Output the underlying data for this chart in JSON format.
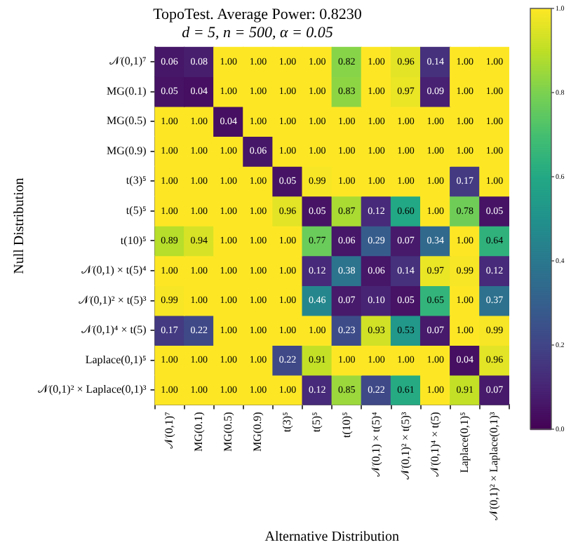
{
  "chart_data": {
    "type": "heatmap",
    "title": "TopoTest. Average Power: 0.8230",
    "subtitle": "d = 5, n = 500, α = 0.05",
    "xlabel": "Alternative Distribution",
    "ylabel": "Null Distribution",
    "categories": [
      "𝒩(0,1)⁷",
      "MG(0.1)",
      "MG(0.5)",
      "MG(0.9)",
      "t(3)⁵",
      "t(5)⁵",
      "t(10)⁵",
      "𝒩(0,1) × t(5)⁴",
      "𝒩(0,1)² × t(5)³",
      "𝒩(0,1)⁴ × t(5)",
      "Laplace(0,1)⁵",
      "𝒩(0,1)² × Laplace(0,1)³"
    ],
    "y_categories": [
      "𝒩(0,1)⁷",
      "MG(0.1)",
      "MG(0.5)",
      "MG(0.9)",
      "t(3)⁵",
      "t(5)⁵",
      "t(10)⁵",
      "𝒩(0,1) × t(5)⁴",
      "𝒩(0,1)² × t(5)³",
      "𝒩(0,1)⁴ × t(5)",
      "Laplace(0,1)⁵",
      "𝒩(0,1)² × Laplace(0,1)³"
    ],
    "cells": [
      [
        0.06,
        0.08,
        1,
        1,
        1,
        1,
        0.82,
        1,
        0.96,
        0.14,
        1,
        1
      ],
      [
        0.05,
        0.04,
        1,
        1,
        1,
        1,
        0.83,
        1,
        0.97,
        0.09,
        1,
        1
      ],
      [
        1,
        1,
        0.04,
        1,
        1,
        1,
        1,
        1,
        1,
        1,
        1,
        1
      ],
      [
        1,
        1,
        1,
        0.06,
        1,
        1,
        1,
        1,
        1,
        1,
        1,
        1
      ],
      [
        1,
        1,
        1,
        1,
        0.05,
        0.99,
        1,
        1,
        1,
        1,
        0.17,
        1
      ],
      [
        1,
        1,
        1,
        1,
        0.96,
        0.05,
        0.87,
        0.12,
        0.6,
        1,
        0.78,
        0.05
      ],
      [
        0.89,
        0.94,
        1,
        1,
        1,
        0.77,
        0.06,
        0.29,
        0.07,
        0.34,
        1,
        0.64
      ],
      [
        1,
        1,
        1,
        1,
        1,
        0.12,
        0.38,
        0.06,
        0.14,
        0.97,
        0.99,
        0.12
      ],
      [
        0.99,
        1,
        1,
        1,
        1,
        0.46,
        0.07,
        0.1,
        0.05,
        0.65,
        1,
        0.37
      ],
      [
        0.17,
        0.22,
        1,
        1,
        1,
        1,
        0.23,
        0.93,
        0.53,
        0.07,
        1,
        0.99
      ],
      [
        1,
        1,
        1,
        1,
        0.22,
        0.91,
        1,
        1,
        1,
        1,
        0.04,
        0.96
      ],
      [
        1,
        1,
        1,
        1,
        1,
        0.12,
        0.85,
        0.22,
        0.61,
        1,
        0.91,
        0.07
      ]
    ],
    "cell_labels": [
      [
        "0.06",
        "0.08",
        "1.00",
        "1.00",
        "1.00",
        "1.00",
        "0.82",
        "1.00",
        "0.96",
        "0.14",
        "1.00",
        "1.00"
      ],
      [
        "0.05",
        "0.04",
        "1.00",
        "1.00",
        "1.00",
        "1.00",
        "0.83",
        "1.00",
        "0.97",
        "0.09",
        "1.00",
        "1.00"
      ],
      [
        "1.00",
        "1.00",
        "0.04",
        "1.00",
        "1.00",
        "1.00",
        "1.00",
        "1.00",
        "1.00",
        "1.00",
        "1.00",
        "1.00"
      ],
      [
        "1.00",
        "1.00",
        "1.00",
        "0.06",
        "1.00",
        "1.00",
        "1.00",
        "1.00",
        "1.00",
        "1.00",
        "1.00",
        "1.00"
      ],
      [
        "1.00",
        "1.00",
        "1.00",
        "1.00",
        "0.05",
        "0.99",
        "1.00",
        "1.00",
        "1.00",
        "1.00",
        "0.17",
        "1.00"
      ],
      [
        "1.00",
        "1.00",
        "1.00",
        "1.00",
        "0.96",
        "0.05",
        "0.87",
        "0.12",
        "0.60",
        "1.00",
        "0.78",
        "0.05"
      ],
      [
        "0.89",
        "0.94",
        "1.00",
        "1.00",
        "1.00",
        "0.77",
        "0.06",
        "0.29",
        "0.07",
        "0.34",
        "1.00",
        "0.64"
      ],
      [
        "1.00",
        "1.00",
        "1.00",
        "1.00",
        "1.00",
        "0.12",
        "0.38",
        "0.06",
        "0.14",
        "0.97",
        "0.99",
        "0.12"
      ],
      [
        "0.99",
        "1.00",
        "1.00",
        "1.00",
        "1.00",
        "0.46",
        "0.07",
        "0.10",
        "0.05",
        "0.65",
        "1.00",
        "0.37"
      ],
      [
        "0.17",
        "0.22",
        "1.00",
        "1.00",
        "1.00",
        "1.00",
        "0.23",
        "0.93",
        "0.53",
        "0.07",
        "1.00",
        "0.99"
      ],
      [
        "1.00",
        "1.00",
        "1.00",
        "1.00",
        "0.22",
        "0.91",
        "1.00",
        "1.00",
        "1.00",
        "1.00",
        "0.04",
        "0.96"
      ],
      [
        "1.00",
        "1.00",
        "1.00",
        "1.00",
        "1.00",
        "0.12",
        "0.85",
        "0.22",
        "0.61",
        "1.00",
        "0.91",
        "0.07"
      ]
    ],
    "clim": [
      0,
      1
    ],
    "cticks": [
      {
        "value": 0,
        "label": "0.0"
      },
      {
        "value": 0.2,
        "label": "0.2"
      },
      {
        "value": 0.4,
        "label": "0.4"
      },
      {
        "value": 0.6,
        "label": "0.6"
      },
      {
        "value": 0.8,
        "label": "0.8"
      },
      {
        "value": 1,
        "label": "1.0"
      }
    ]
  }
}
